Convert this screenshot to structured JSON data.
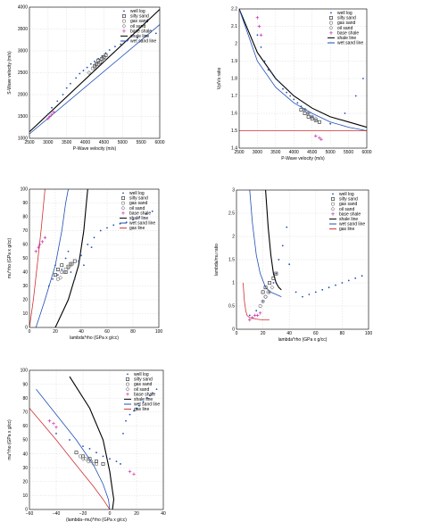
{
  "chart_data": [
    {
      "type": "scatter",
      "xlabel": "P-Wave velocity (m/s)",
      "ylabel": "S-Wave velocity (m/s)",
      "xlim": [
        2500,
        6000
      ],
      "ylim": [
        1000,
        4000
      ],
      "xticks": [
        "2500",
        "3000",
        "3500",
        "4000",
        "4500",
        "5000",
        "5500",
        "6000"
      ],
      "yticks": [
        "1000",
        "1500",
        "2000",
        "2500",
        "3000",
        "3500",
        "4000"
      ],
      "grid": true,
      "legend_position": "top-right",
      "legend": [
        "well log",
        "silty sand",
        "gas sand",
        "oil sand",
        "base shale",
        "shale line",
        "wet sand line"
      ],
      "series": [
        {
          "name": "well log",
          "color": "#1f4fb5",
          "marker": "dot",
          "x": [
            3000,
            3100,
            3250,
            3400,
            3500,
            3600,
            3750,
            3850,
            3950,
            4050,
            4150,
            4250,
            4350,
            4450,
            4550,
            4650,
            4800,
            4950,
            5150,
            5400,
            5650,
            5900
          ],
          "y": [
            1550,
            1700,
            1850,
            2000,
            2150,
            2250,
            2380,
            2480,
            2550,
            2620,
            2700,
            2760,
            2820,
            2880,
            2950,
            3020,
            3100,
            3150,
            3250,
            3300,
            3350,
            3400
          ]
        },
        {
          "name": "silty sand",
          "color": "#222222",
          "marker": "square",
          "x": [
            4250,
            4300,
            4350,
            4400,
            4450,
            4500,
            4550
          ],
          "y": [
            2650,
            2700,
            2780,
            2740,
            2820,
            2860,
            2900
          ]
        },
        {
          "name": "gas sand",
          "color": "#777777",
          "marker": "circle",
          "x": [
            4200,
            4300,
            4400,
            4450,
            4500
          ],
          "y": [
            2600,
            2680,
            2750,
            2800,
            2840
          ]
        },
        {
          "name": "oil sand",
          "color": "#888888",
          "marker": "diamond",
          "x": [
            4100,
            4250,
            4350,
            4500
          ],
          "y": [
            2500,
            2620,
            2700,
            2800
          ]
        },
        {
          "name": "base shale",
          "color": "#cc33aa",
          "marker": "plus",
          "x": [
            3000,
            3050,
            3100,
            3150
          ],
          "y": [
            1450,
            1500,
            1550,
            1600
          ]
        }
      ],
      "lines": [
        {
          "name": "shale line",
          "color": "#000000",
          "x": [
            2500,
            6000
          ],
          "y": [
            1150,
            3950
          ]
        },
        {
          "name": "wet sand line",
          "color": "#1f4fb5",
          "x": [
            2500,
            6000
          ],
          "y": [
            1100,
            3600
          ]
        }
      ]
    },
    {
      "type": "scatter",
      "xlabel": "P-Wave velocity (m/s)",
      "ylabel": "Vp/Vs ratio",
      "xlim": [
        2500,
        6000
      ],
      "ylim": [
        1.4,
        2.2
      ],
      "xticks": [
        "2500",
        "3000",
        "3500",
        "4000",
        "4500",
        "5000",
        "5500",
        "6000"
      ],
      "yticks": [
        "1.4",
        "1.5",
        "1.6",
        "1.7",
        "1.8",
        "1.9",
        "2",
        "2.1",
        "2.2"
      ],
      "grid": true,
      "legend_position": "top-right",
      "legend": [
        "well log",
        "silty sand",
        "gas sand",
        "oil sand",
        "base shale",
        "shale line",
        "wet sand line"
      ],
      "series": [
        {
          "name": "well log",
          "color": "#1f4fb5",
          "marker": "dot",
          "x": [
            3000,
            3100,
            3200,
            3300,
            3400,
            3500,
            3600,
            3700,
            3800,
            3900,
            4000,
            4100,
            4200,
            4300,
            4400,
            4500,
            4600,
            5000,
            5400,
            5700,
            5900
          ],
          "y": [
            2.05,
            1.98,
            1.9,
            1.85,
            1.83,
            1.8,
            1.78,
            1.74,
            1.72,
            1.7,
            1.68,
            1.66,
            1.64,
            1.62,
            1.6,
            1.58,
            1.56,
            1.54,
            1.6,
            1.7,
            1.8
          ]
        },
        {
          "name": "silty sand",
          "color": "#222222",
          "marker": "square",
          "x": [
            4200,
            4300,
            4400,
            4500,
            4600,
            4700
          ],
          "y": [
            1.62,
            1.6,
            1.58,
            1.57,
            1.56,
            1.55
          ]
        },
        {
          "name": "gas sand",
          "color": "#777777",
          "marker": "circle",
          "x": [
            4300,
            4400,
            4500,
            4600
          ],
          "y": [
            1.62,
            1.6,
            1.58,
            1.56
          ]
        },
        {
          "name": "oil sand",
          "color": "#888888",
          "marker": "diamond",
          "x": [
            4400,
            4500,
            4600
          ],
          "y": [
            1.6,
            1.58,
            1.57
          ]
        },
        {
          "name": "base shale",
          "color": "#cc33aa",
          "marker": "plus",
          "x": [
            3000,
            3050,
            3100,
            4600,
            4700,
            4750
          ],
          "y": [
            2.15,
            2.1,
            2.05,
            1.47,
            1.46,
            1.45
          ]
        }
      ],
      "lines": [
        {
          "name": "shale line",
          "color": "#000000",
          "x": [
            2500,
            3000,
            3500,
            4000,
            4500,
            5000,
            5500,
            6000
          ],
          "y": [
            2.2,
            1.95,
            1.8,
            1.7,
            1.63,
            1.58,
            1.55,
            1.52
          ]
        },
        {
          "name": "wet sand line",
          "color": "#1f4fb5",
          "x": [
            2500,
            3000,
            3500,
            4000,
            4500,
            5000,
            5500,
            6000
          ],
          "y": [
            2.2,
            1.9,
            1.75,
            1.66,
            1.6,
            1.55,
            1.52,
            1.5
          ]
        },
        {
          "name": "",
          "color": "#d03030",
          "x": [
            2500,
            6000
          ],
          "y": [
            1.5,
            1.5
          ]
        }
      ]
    },
    {
      "type": "scatter",
      "xlabel": "lambda*rho (GPa x g/cc)",
      "ylabel": "mu*rho (GPa x g/cc)",
      "xlim": [
        0,
        100
      ],
      "ylim": [
        0,
        100
      ],
      "xticks": [
        "0",
        "20",
        "40",
        "60",
        "80",
        "100"
      ],
      "yticks": [
        "0",
        "10",
        "20",
        "30",
        "40",
        "50",
        "60",
        "70",
        "80",
        "90",
        "100"
      ],
      "grid": true,
      "legend_position": "top-right",
      "legend": [
        "well log",
        "silty sand",
        "gas sand",
        "oil sand",
        "base shale",
        "shale line",
        "wet sand line",
        "gas line"
      ],
      "series": [
        {
          "name": "well log",
          "color": "#1f4fb5",
          "marker": "dot",
          "x": [
            15,
            18,
            20,
            22,
            25,
            28,
            30,
            32,
            35,
            38,
            40,
            42,
            45,
            48,
            50,
            55,
            60,
            65,
            70,
            75,
            80,
            85,
            90,
            95
          ],
          "y": [
            30,
            35,
            45,
            38,
            42,
            50,
            55,
            40,
            35,
            48,
            52,
            45,
            60,
            58,
            65,
            70,
            72,
            74,
            75,
            76,
            78,
            80,
            82,
            84
          ]
        },
        {
          "name": "silty sand",
          "color": "#222222",
          "marker": "square",
          "x": [
            20,
            22,
            25,
            28,
            30,
            32,
            35
          ],
          "y": [
            38,
            42,
            45,
            40,
            44,
            46,
            48
          ]
        },
        {
          "name": "gas sand",
          "color": "#777777",
          "marker": "circle",
          "x": [
            22,
            25,
            28,
            30,
            33
          ],
          "y": [
            35,
            40,
            42,
            44,
            46
          ]
        },
        {
          "name": "oil sand",
          "color": "#888888",
          "marker": "diamond",
          "x": [
            24,
            27,
            30,
            32
          ],
          "y": [
            36,
            40,
            43,
            45
          ]
        },
        {
          "name": "base shale",
          "color": "#cc33aa",
          "marker": "plus",
          "x": [
            5,
            7,
            8,
            10,
            12
          ],
          "y": [
            55,
            58,
            60,
            62,
            65
          ]
        }
      ],
      "lines": [
        {
          "name": "shale line",
          "color": "#000000",
          "x": [
            20,
            30,
            38,
            42,
            44,
            45
          ],
          "y": [
            0,
            20,
            45,
            70,
            90,
            100
          ]
        },
        {
          "name": "wet sand line",
          "color": "#1f4fb5",
          "x": [
            5,
            12,
            20,
            25,
            28,
            30
          ],
          "y": [
            0,
            20,
            45,
            70,
            90,
            100
          ]
        },
        {
          "name": "gas line",
          "color": "#d03030",
          "x": [
            0,
            3,
            6,
            9,
            12
          ],
          "y": [
            0,
            20,
            45,
            70,
            100
          ]
        }
      ]
    },
    {
      "type": "scatter",
      "xlabel": "lambda*rho (GPa x g/cc)",
      "ylabel": "lambda/mu ratio",
      "xlim": [
        0,
        100
      ],
      "ylim": [
        0,
        3
      ],
      "xticks": [
        "0",
        "20",
        "40",
        "60",
        "80",
        "100"
      ],
      "yticks": [
        "0",
        "0.5",
        "1",
        "1.5",
        "2",
        "2.5",
        "3"
      ],
      "grid": true,
      "legend_position": "top-right",
      "legend": [
        "well log",
        "silty sand",
        "gas sand",
        "oil sand",
        "base shale",
        "shale line",
        "wet sand line",
        "gas line"
      ],
      "series": [
        {
          "name": "well log",
          "color": "#1f4fb5",
          "marker": "dot",
          "x": [
            10,
            15,
            20,
            25,
            28,
            30,
            32,
            35,
            38,
            40,
            45,
            50,
            55,
            60,
            65,
            70,
            75,
            80,
            85,
            90,
            95
          ],
          "y": [
            0.3,
            0.4,
            0.6,
            0.8,
            1.0,
            1.2,
            1.5,
            1.8,
            2.2,
            1.4,
            0.8,
            0.7,
            0.75,
            0.8,
            0.85,
            0.9,
            0.95,
            1.0,
            1.05,
            1.1,
            1.15
          ]
        },
        {
          "name": "silty sand",
          "color": "#222222",
          "marker": "square",
          "x": [
            20,
            22,
            25,
            28,
            30
          ],
          "y": [
            0.8,
            0.9,
            1.0,
            1.1,
            1.2
          ]
        },
        {
          "name": "gas sand",
          "color": "#777777",
          "marker": "circle",
          "x": [
            18,
            20,
            22,
            24
          ],
          "y": [
            0.5,
            0.6,
            0.7,
            0.8
          ]
        },
        {
          "name": "oil sand",
          "color": "#888888",
          "marker": "diamond",
          "x": [
            22,
            25,
            27
          ],
          "y": [
            0.7,
            0.8,
            0.9
          ]
        },
        {
          "name": "base shale",
          "color": "#cc33aa",
          "marker": "plus",
          "x": [
            10,
            12,
            14,
            16,
            18
          ],
          "y": [
            0.2,
            0.25,
            0.3,
            0.3,
            0.35
          ]
        }
      ],
      "lines": [
        {
          "name": "shale line",
          "color": "#000000",
          "x": [
            22,
            24,
            26,
            28,
            30,
            32,
            34
          ],
          "y": [
            3,
            2.2,
            1.6,
            1.2,
            1.0,
            0.9,
            0.85
          ]
        },
        {
          "name": "wet sand line",
          "color": "#1f4fb5",
          "x": [
            10,
            12,
            15,
            18,
            22,
            26,
            30,
            34
          ],
          "y": [
            3,
            2.3,
            1.6,
            1.2,
            0.9,
            0.8,
            0.75,
            0.7
          ]
        },
        {
          "name": "gas line",
          "color": "#d03030",
          "x": [
            5,
            6,
            7,
            8,
            10,
            15,
            20,
            25
          ],
          "y": [
            1.0,
            0.6,
            0.4,
            0.3,
            0.25,
            0.22,
            0.2,
            0.2
          ]
        }
      ]
    },
    {
      "type": "scatter",
      "xlabel": "(lambda−mu)*rho (GPa x g/cc)",
      "ylabel": "mu*rho (GPa x g/cc)",
      "xlim": [
        -60,
        40
      ],
      "ylim": [
        0,
        110
      ],
      "xticks": [
        "−60",
        "−40",
        "−20",
        "0",
        "20",
        "40"
      ],
      "yticks": [
        "0",
        "10",
        "20",
        "30",
        "40",
        "50",
        "60",
        "70",
        "80",
        "90",
        "100"
      ],
      "grid": true,
      "legend_position": "top-right",
      "legend": [
        "well log",
        "silty sand",
        "gas sand",
        "oil sand",
        "base shale",
        "shale line",
        "wet sand line",
        "gas line"
      ],
      "series": [
        {
          "name": "well log",
          "color": "#1f4fb5",
          "marker": "dot",
          "x": [
            -40,
            -30,
            -20,
            -15,
            -10,
            -5,
            0,
            5,
            8,
            10,
            12,
            15,
            18,
            20,
            22,
            25,
            28,
            30,
            32,
            35
          ],
          "y": [
            60,
            55,
            50,
            48,
            45,
            42,
            40,
            38,
            36,
            60,
            70,
            75,
            78,
            80,
            82,
            85,
            88,
            90,
            92,
            95
          ]
        },
        {
          "name": "silty sand",
          "color": "#222222",
          "marker": "square",
          "x": [
            -25,
            -20,
            -15,
            -10,
            -5
          ],
          "y": [
            45,
            42,
            40,
            38,
            36
          ]
        },
        {
          "name": "gas sand",
          "color": "#777777",
          "marker": "circle",
          "x": [
            -22,
            -18,
            -14,
            -10
          ],
          "y": [
            42,
            40,
            38,
            36
          ]
        },
        {
          "name": "oil sand",
          "color": "#888888",
          "marker": "diamond",
          "x": [
            -20,
            -16,
            -12
          ],
          "y": [
            40,
            38,
            36
          ]
        },
        {
          "name": "base shale",
          "color": "#cc33aa",
          "marker": "plus",
          "x": [
            -45,
            -42,
            -40,
            15,
            18
          ],
          "y": [
            70,
            68,
            65,
            30,
            28
          ]
        }
      ],
      "lines": [
        {
          "name": "shale line",
          "color": "#000000",
          "x": [
            -30,
            -15,
            -5,
            0,
            2,
            3,
            2
          ],
          "y": [
            105,
            80,
            55,
            30,
            15,
            8,
            0
          ]
        },
        {
          "name": "wet sand line",
          "color": "#1f4fb5",
          "x": [
            -55,
            -40,
            -25,
            -12,
            -5,
            -1,
            0
          ],
          "y": [
            95,
            75,
            55,
            35,
            20,
            8,
            0
          ]
        },
        {
          "name": "gas line",
          "color": "#d03030",
          "x": [
            -60,
            -40,
            -25,
            -12,
            -5,
            0
          ],
          "y": [
            80,
            55,
            35,
            18,
            8,
            0
          ]
        }
      ]
    }
  ]
}
